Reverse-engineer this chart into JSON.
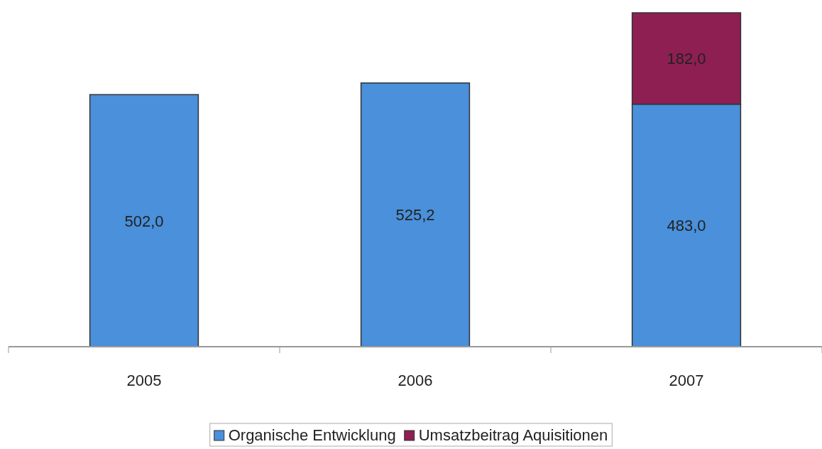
{
  "chart_data": {
    "type": "bar",
    "stacked": true,
    "categories": [
      "2005",
      "2006",
      "2007"
    ],
    "series": [
      {
        "name": "Organische Entwicklung",
        "color": "#4a90da",
        "values": [
          502.0,
          525.2,
          483.0
        ],
        "value_labels": [
          "502,0",
          "525,2",
          "483,0"
        ]
      },
      {
        "name": "Umsatzbeitrag Aquisitionen",
        "color": "#8e1f52",
        "values": [
          null,
          null,
          182.0
        ],
        "value_labels": [
          null,
          null,
          "182,0"
        ]
      }
    ],
    "tick_labels": "x",
    "legend": "bottom"
  }
}
